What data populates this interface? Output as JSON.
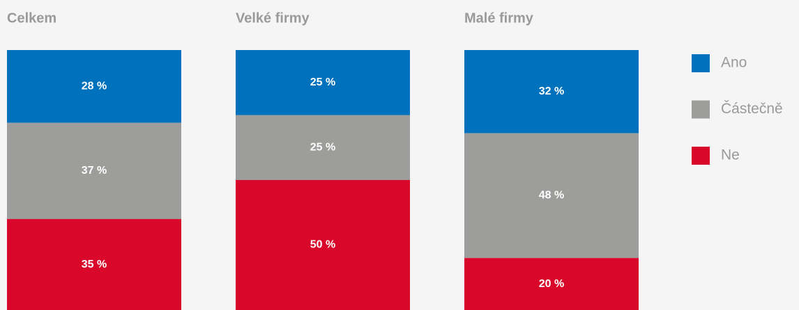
{
  "chart_data": {
    "type": "stacked_bar",
    "categories": [
      "Celkem",
      "Velké firmy",
      "Malé firmy"
    ],
    "ylim": [
      0,
      100
    ],
    "series": [
      {
        "name": "Ano",
        "color": "#0071bc",
        "values": [
          28,
          25,
          32
        ],
        "value_labels": [
          "28 %",
          "25 %",
          "32 %"
        ]
      },
      {
        "name": "Částečně",
        "color": "#9d9d9b",
        "values": [
          37,
          25,
          48
        ],
        "value_labels": [
          "37 %",
          "25 %",
          "48 %"
        ]
      },
      {
        "name": "Ne",
        "color": "#d9082b",
        "values": [
          35,
          50,
          20
        ],
        "value_labels": [
          "35 %",
          "50 %",
          "20 %"
        ]
      }
    ]
  }
}
